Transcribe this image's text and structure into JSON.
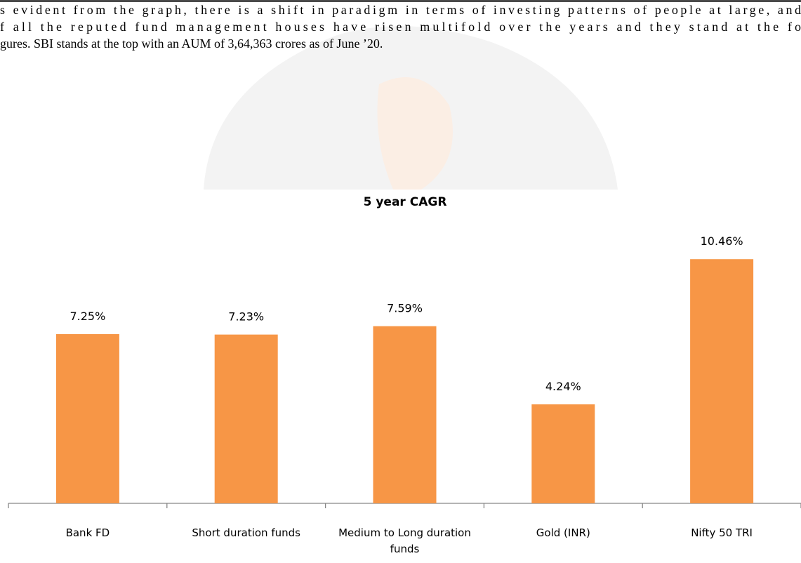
{
  "paragraph": [
    "s evident from the graph, there is a shift in paradigm in terms of investing patterns of people at large, and",
    "f all the reputed fund management houses have risen multifold over the years and they stand at the fo",
    "gures. SBI stands at the top with an AUM of 3,64,363 crores as of June ’20."
  ],
  "chart_data": {
    "type": "bar",
    "title": "5 year CAGR",
    "categories": [
      "Bank FD",
      "Short duration funds",
      "Medium to Long duration funds",
      "Gold (INR)",
      "Nifty 50 TRI"
    ],
    "values": [
      7.25,
      7.23,
      7.59,
      4.24,
      10.46
    ],
    "value_labels": [
      "7.25%",
      "7.23%",
      "7.59%",
      "4.24%",
      "10.46%"
    ],
    "color": "#f79646",
    "ylim": [
      0,
      12
    ]
  }
}
